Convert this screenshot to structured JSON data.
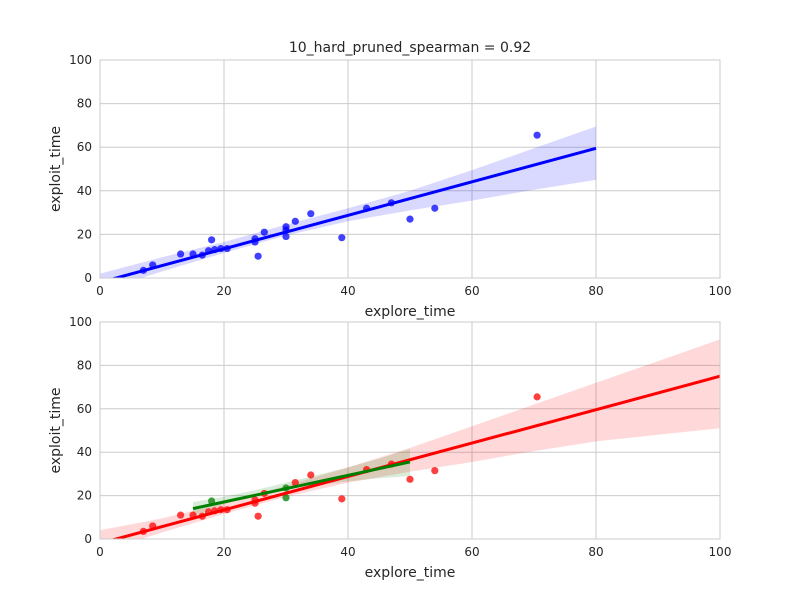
{
  "figure": {
    "title": "10_hard_pruned_spearman = 0.92"
  },
  "chart_data": [
    {
      "type": "scatter",
      "title": "10_hard_pruned_spearman = 0.92",
      "xlabel": "explore_time",
      "ylabel": "exploit_time",
      "xlim": [
        0,
        100
      ],
      "ylim": [
        0,
        100
      ],
      "xticks": [
        0,
        20,
        40,
        60,
        80,
        100
      ],
      "yticks": [
        0,
        20,
        40,
        60,
        80,
        100
      ],
      "grid": true,
      "series": [
        {
          "color": "#0000ff",
          "points": [
            {
              "x": 7,
              "y": 3.5
            },
            {
              "x": 8.5,
              "y": 6
            },
            {
              "x": 13,
              "y": 11
            },
            {
              "x": 15,
              "y": 11
            },
            {
              "x": 16.5,
              "y": 10.5
            },
            {
              "x": 17.5,
              "y": 12.5
            },
            {
              "x": 18,
              "y": 17.5
            },
            {
              "x": 18.5,
              "y": 13
            },
            {
              "x": 19.5,
              "y": 13.5
            },
            {
              "x": 20.5,
              "y": 13.5
            },
            {
              "x": 25,
              "y": 16.5
            },
            {
              "x": 25,
              "y": 18
            },
            {
              "x": 25.5,
              "y": 10
            },
            {
              "x": 26.5,
              "y": 21
            },
            {
              "x": 30,
              "y": 23.5
            },
            {
              "x": 30,
              "y": 22
            },
            {
              "x": 30,
              "y": 19
            },
            {
              "x": 31.5,
              "y": 26
            },
            {
              "x": 34,
              "y": 29.5
            },
            {
              "x": 39,
              "y": 18.5
            },
            {
              "x": 43,
              "y": 32
            },
            {
              "x": 47,
              "y": 34.5
            },
            {
              "x": 50,
              "y": 27
            },
            {
              "x": 54,
              "y": 32
            },
            {
              "x": 70.5,
              "y": 65.5
            }
          ],
          "fit": {
            "x": [
              0,
              80
            ],
            "y": [
              -2,
              59.5
            ]
          },
          "ci_band": {
            "x": [
              0,
              10,
              20,
              30,
              40,
              50,
              60,
              70,
              80
            ],
            "lower": [
              -6,
              3,
              11.5,
              19.5,
              26,
              31,
              35.5,
              40.5,
              45
            ],
            "upper": [
              2,
              9.5,
              16.5,
              24.5,
              32,
              40,
              49.5,
              59.5,
              69.5
            ]
          }
        }
      ]
    },
    {
      "type": "scatter",
      "xlabel": "explore_time",
      "ylabel": "exploit_time",
      "xlim": [
        0,
        100
      ],
      "ylim": [
        0,
        100
      ],
      "xticks": [
        0,
        20,
        40,
        60,
        80,
        100
      ],
      "yticks": [
        0,
        20,
        40,
        60,
        80,
        100
      ],
      "grid": true,
      "series": [
        {
          "color": "#ff0000",
          "points": [
            {
              "x": 7,
              "y": 3.5
            },
            {
              "x": 8.5,
              "y": 6
            },
            {
              "x": 13,
              "y": 11
            },
            {
              "x": 15,
              "y": 11
            },
            {
              "x": 16.5,
              "y": 10.5
            },
            {
              "x": 17.5,
              "y": 12.5
            },
            {
              "x": 18.5,
              "y": 13
            },
            {
              "x": 19.5,
              "y": 13.5
            },
            {
              "x": 20.5,
              "y": 13.5
            },
            {
              "x": 25,
              "y": 16.5
            },
            {
              "x": 25,
              "y": 18
            },
            {
              "x": 25.5,
              "y": 10.5
            },
            {
              "x": 26.5,
              "y": 21
            },
            {
              "x": 31.5,
              "y": 26
            },
            {
              "x": 34,
              "y": 29.5
            },
            {
              "x": 39,
              "y": 18.5
            },
            {
              "x": 43,
              "y": 32
            },
            {
              "x": 47,
              "y": 34.5
            },
            {
              "x": 50,
              "y": 27.5
            },
            {
              "x": 54,
              "y": 31.5
            },
            {
              "x": 70.5,
              "y": 65.5
            }
          ],
          "fit": {
            "x": [
              0,
              100
            ],
            "y": [
              -2,
              75
            ]
          },
          "ci_band": {
            "x": [
              0,
              10,
              20,
              30,
              40,
              50,
              60,
              70,
              80,
              90,
              100
            ],
            "lower": [
              -6,
              3,
              11.5,
              19.5,
              26,
              31,
              35.5,
              40.5,
              45,
              48,
              51
            ],
            "upper": [
              4,
              9.5,
              16.5,
              24.5,
              33,
              42,
              52,
              62,
              72,
              82,
              92
            ]
          }
        },
        {
          "color": "#008000",
          "points": [
            {
              "x": 18,
              "y": 17.5
            },
            {
              "x": 30,
              "y": 19
            },
            {
              "x": 30,
              "y": 23.5
            }
          ],
          "fit": {
            "x": [
              15,
              50
            ],
            "y": [
              14,
              35.5
            ]
          },
          "ci_band": {
            "x": [
              15,
              20,
              25,
              30,
              35,
              40,
              45,
              50
            ],
            "lower": [
              10.5,
              16,
              20.5,
              23.5,
              25,
              26.5,
              28,
              29
            ],
            "upper": [
              17,
              19.5,
              22.5,
              26,
              29.5,
              33,
              37,
              41.5
            ]
          }
        }
      ]
    }
  ]
}
